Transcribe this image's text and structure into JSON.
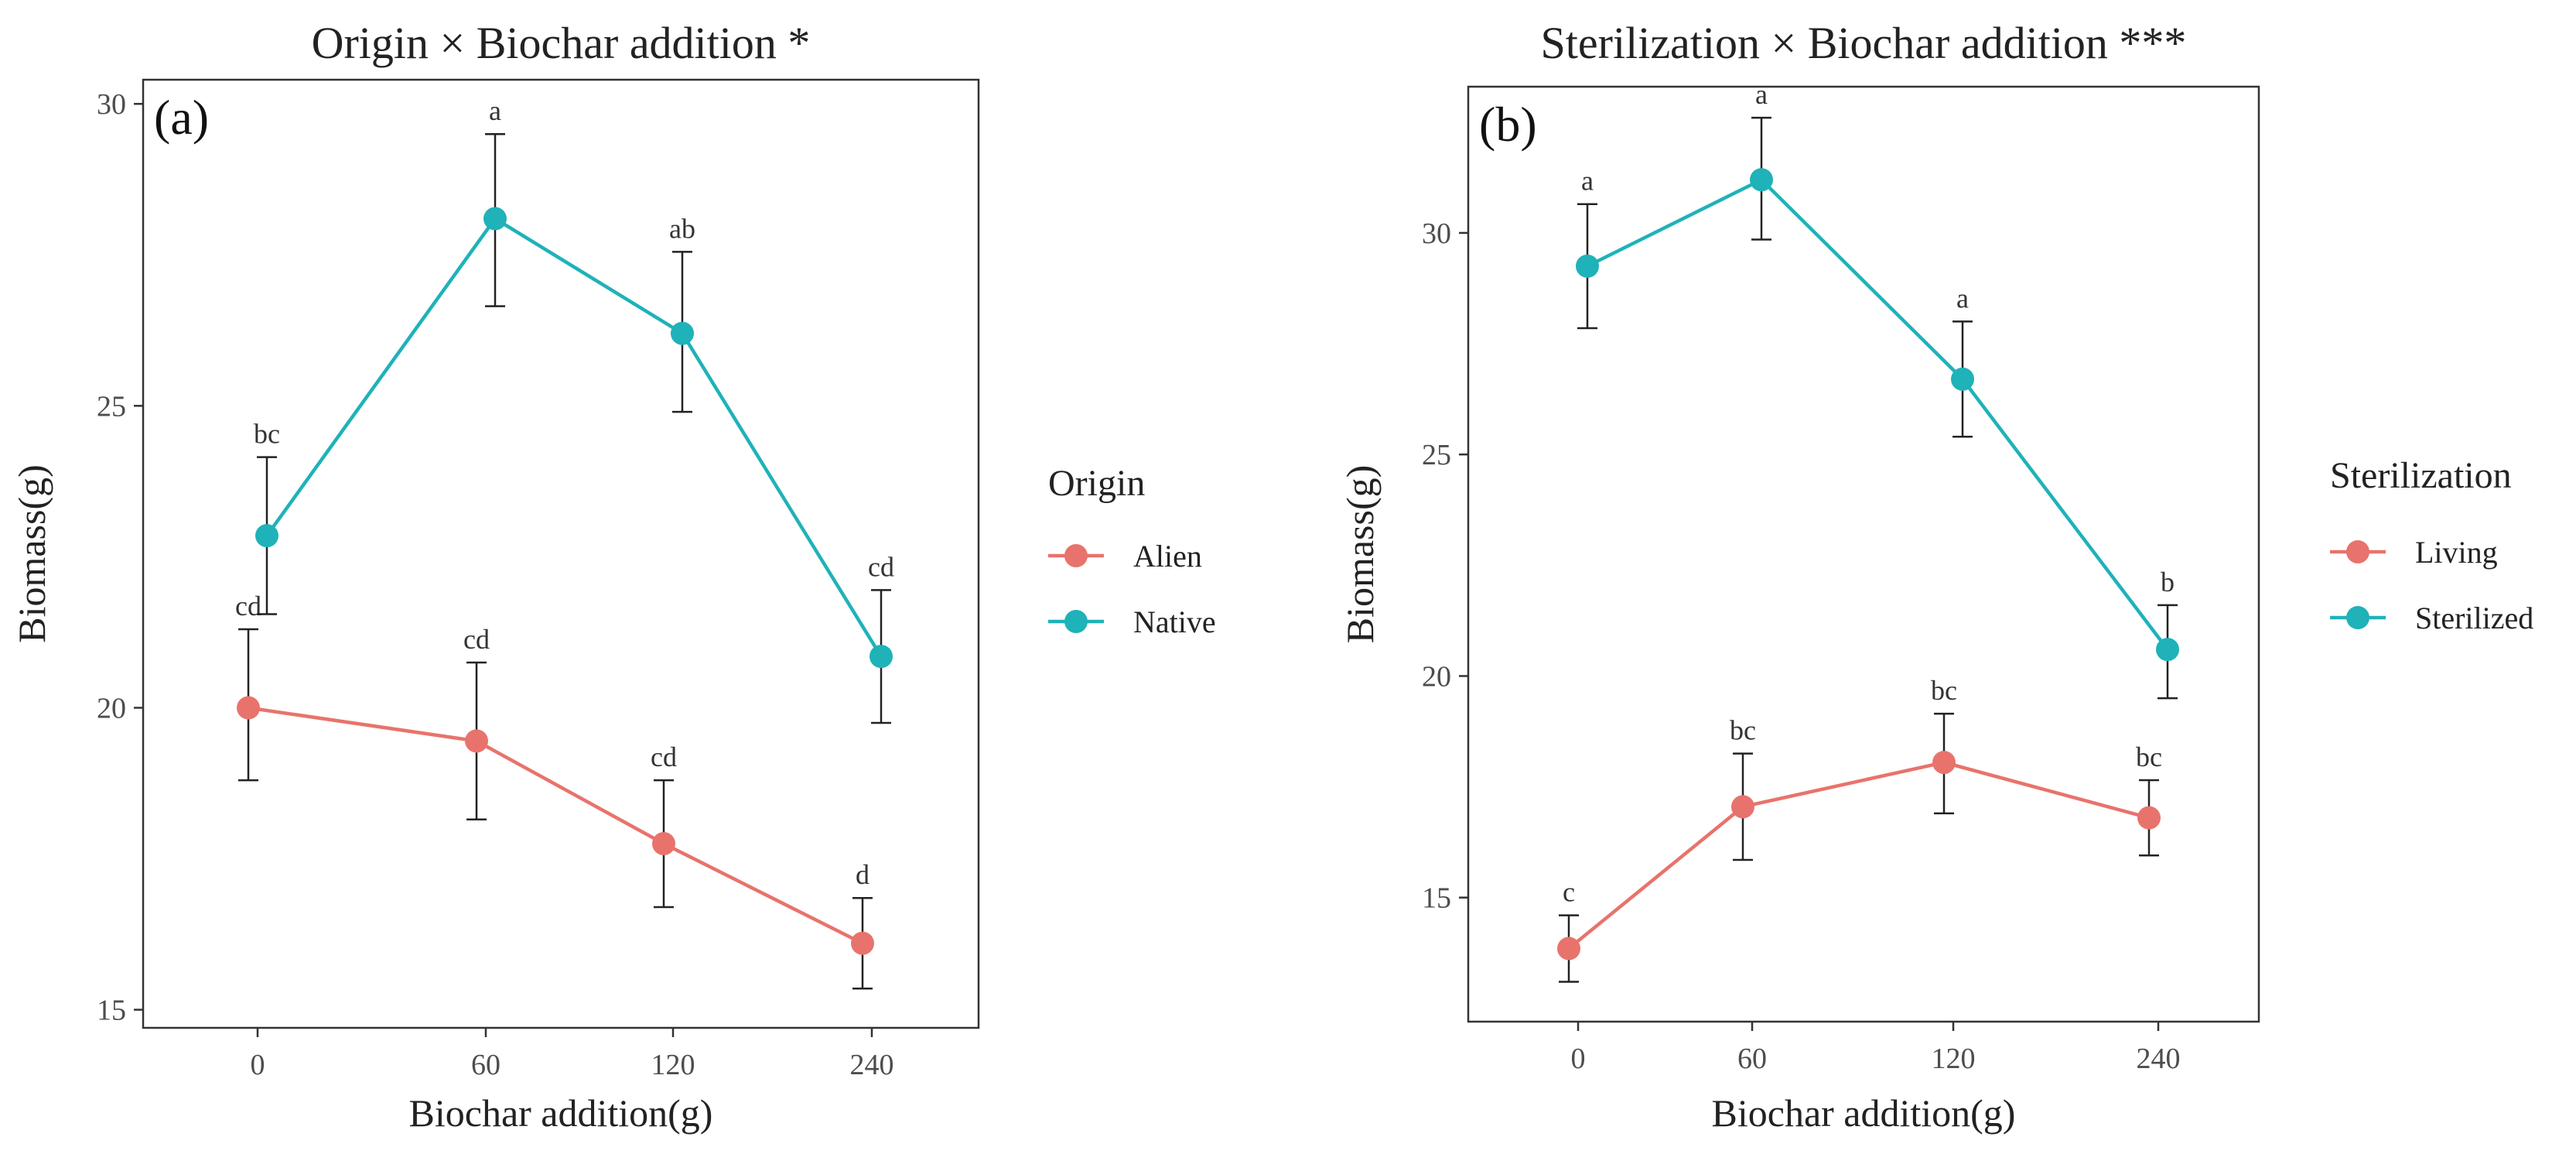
{
  "chart_data": [
    {
      "type": "line",
      "panel_label": "(a)",
      "title": "Origin × Biochar addition *",
      "xlabel": "Biochar addition(g)",
      "ylabel": "Biomass(g)",
      "categories": [
        "0",
        "60",
        "120",
        "240"
      ],
      "ylim": [
        14.7,
        30.4
      ],
      "yticks": [
        15,
        20,
        25,
        30
      ],
      "legend_title": "Origin",
      "series": [
        {
          "name": "Alien",
          "color": "#E8736C",
          "values": [
            20.0,
            19.45,
            17.75,
            16.1
          ],
          "err_low": [
            18.8,
            18.15,
            16.7,
            15.35
          ],
          "err_high": [
            21.3,
            20.75,
            18.8,
            16.85
          ],
          "letters": [
            "cd",
            "cd",
            "cd",
            "d"
          ]
        },
        {
          "name": "Native",
          "color": "#1FB2B9",
          "values": [
            22.85,
            28.1,
            26.2,
            20.85
          ],
          "err_low": [
            21.55,
            26.65,
            24.9,
            19.75
          ],
          "err_high": [
            24.15,
            29.5,
            27.55,
            21.95
          ],
          "letters": [
            "bc",
            "a",
            "ab",
            "cd"
          ]
        }
      ]
    },
    {
      "type": "line",
      "panel_label": "(b)",
      "title": "Sterilization × Biochar addition ***",
      "xlabel": "Biochar addition(g)",
      "ylabel": "Biomass(g)",
      "categories": [
        "0",
        "60",
        "120",
        "240"
      ],
      "ylim": [
        12.2,
        33.3
      ],
      "yticks": [
        15,
        20,
        25,
        30
      ],
      "legend_title": "Sterilization",
      "series": [
        {
          "name": "Living",
          "color": "#E8736C",
          "values": [
            13.85,
            17.05,
            18.05,
            16.8
          ],
          "err_low": [
            13.1,
            15.85,
            16.9,
            15.95
          ],
          "err_high": [
            14.6,
            18.25,
            19.15,
            17.65
          ],
          "letters": [
            "c",
            "bc",
            "bc",
            "bc"
          ]
        },
        {
          "name": "Sterilized",
          "color": "#1FB2B9",
          "values": [
            29.25,
            31.2,
            26.7,
            20.6
          ],
          "err_low": [
            27.85,
            29.85,
            25.4,
            19.5
          ],
          "err_high": [
            30.65,
            32.6,
            28.0,
            21.6
          ],
          "letters": [
            "a",
            "a",
            "a",
            "b"
          ]
        }
      ]
    }
  ]
}
